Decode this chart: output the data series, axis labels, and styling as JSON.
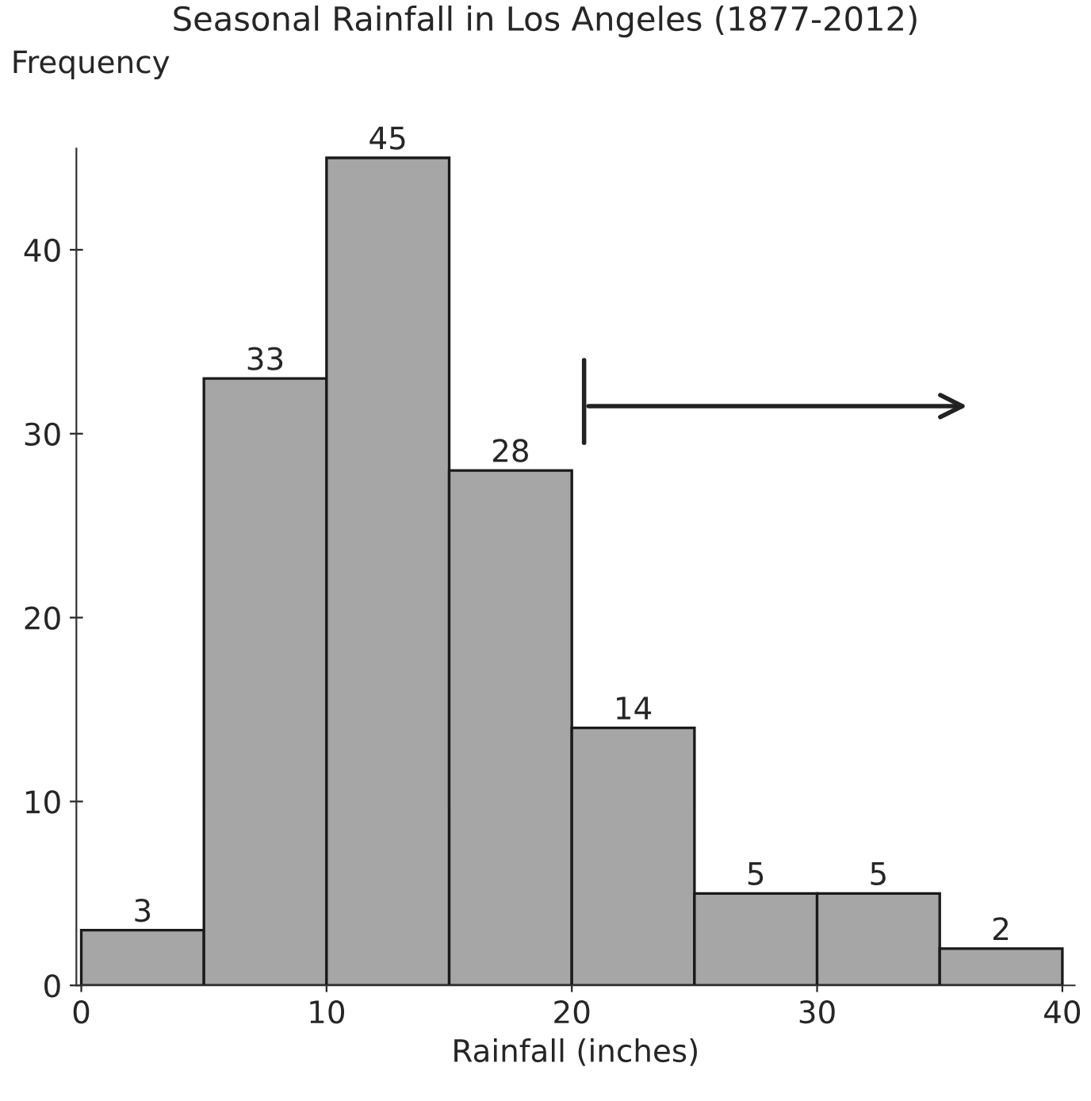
{
  "chart_data": {
    "type": "histogram",
    "title": "Seasonal Rainfall in Los Angeles (1877-2012)",
    "xlabel": "Rainfall (inches)",
    "ylabel": "Frequency",
    "bins": [
      0,
      5,
      10,
      15,
      20,
      25,
      30,
      35,
      40
    ],
    "values": [
      3,
      33,
      45,
      28,
      14,
      5,
      5,
      2
    ],
    "color": "#a6a6a6",
    "xlim": [
      -0.2,
      40.5
    ],
    "ylim": [
      0,
      45.5
    ],
    "xticks": [
      0,
      10,
      20,
      30,
      40
    ],
    "yticks": [
      0,
      10,
      20,
      30,
      40
    ],
    "grid": false,
    "data_labels": true
  }
}
